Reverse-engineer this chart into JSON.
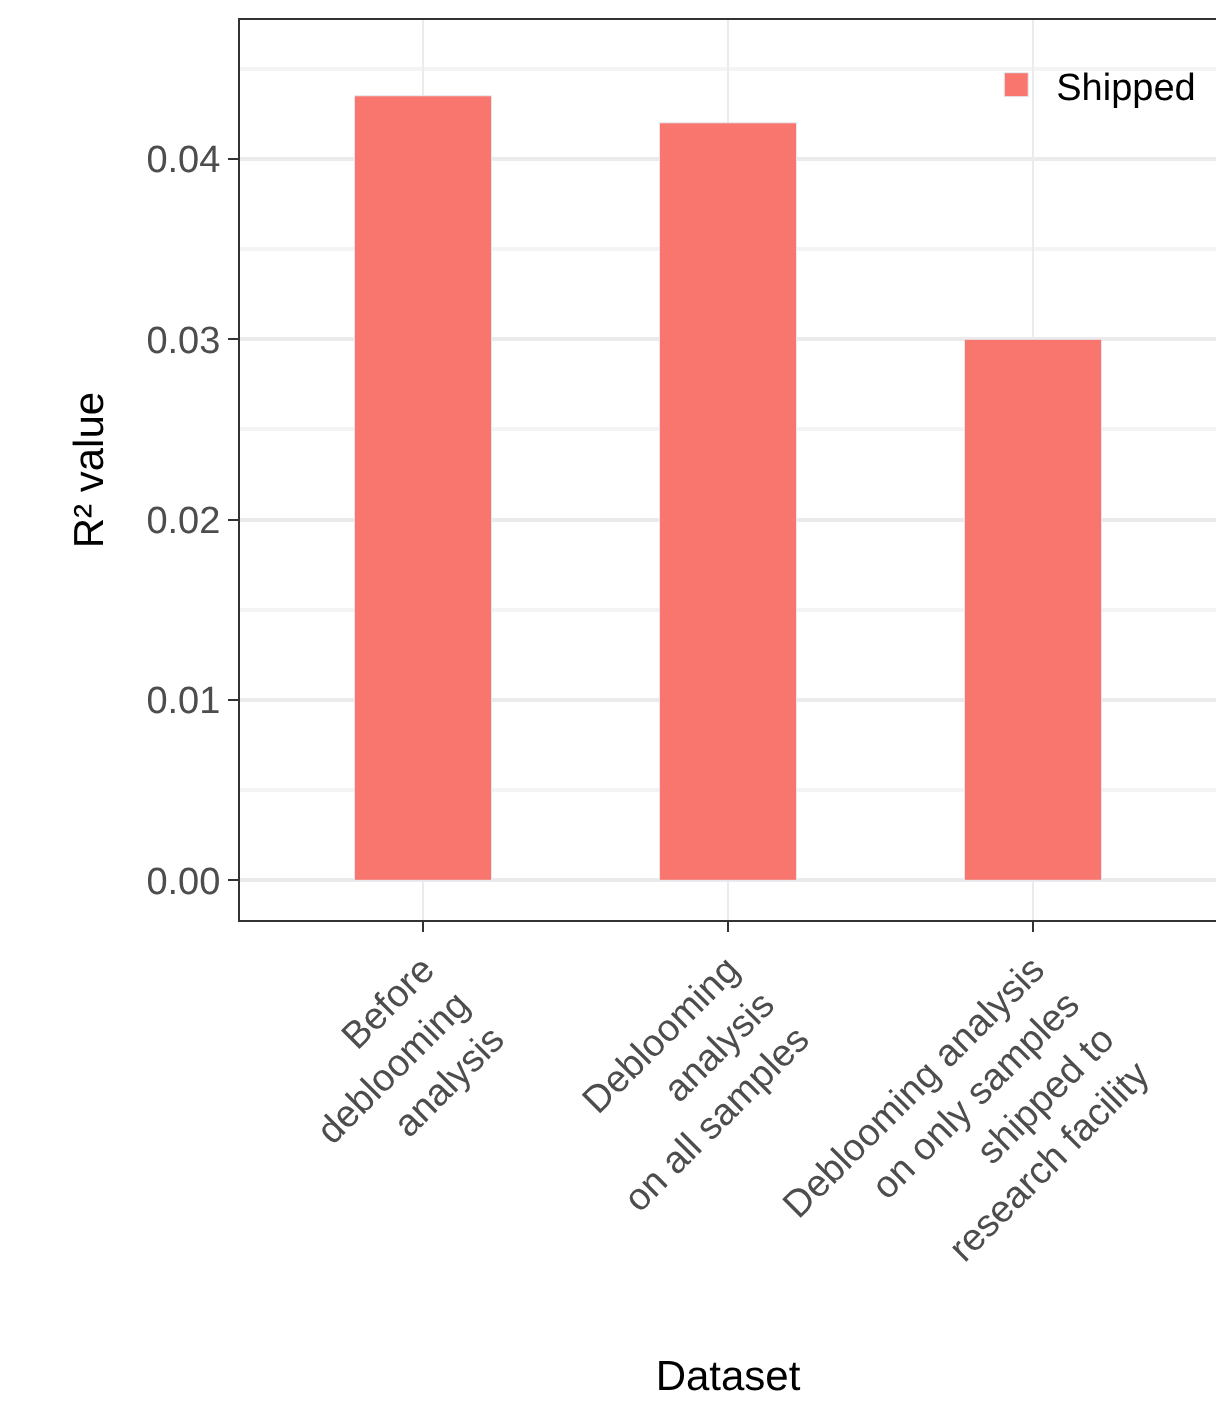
{
  "chart_data": {
    "type": "bar",
    "xlabel": "Dataset",
    "ylabel": "R² value",
    "categories": [
      "Before\ndeblooming\nanalysis",
      "Deblooming\nanalysis\non all samples",
      "Deblooming analysis\non only samples\nshipped to\nresearch facility"
    ],
    "series": [
      {
        "name": "Shipped",
        "color": "#f8766d",
        "values": [
          0.0435,
          0.042,
          0.03
        ]
      }
    ],
    "ylim": [
      -0.0022,
      0.0477
    ],
    "yticks": [
      {
        "value": 0,
        "label": "0.00"
      },
      {
        "value": 0.01,
        "label": "0.01"
      },
      {
        "value": 0.02,
        "label": "0.02"
      },
      {
        "value": 0.03,
        "label": "0.03"
      },
      {
        "value": 0.04,
        "label": "0.04"
      }
    ],
    "grid": true,
    "legend": "top right"
  }
}
